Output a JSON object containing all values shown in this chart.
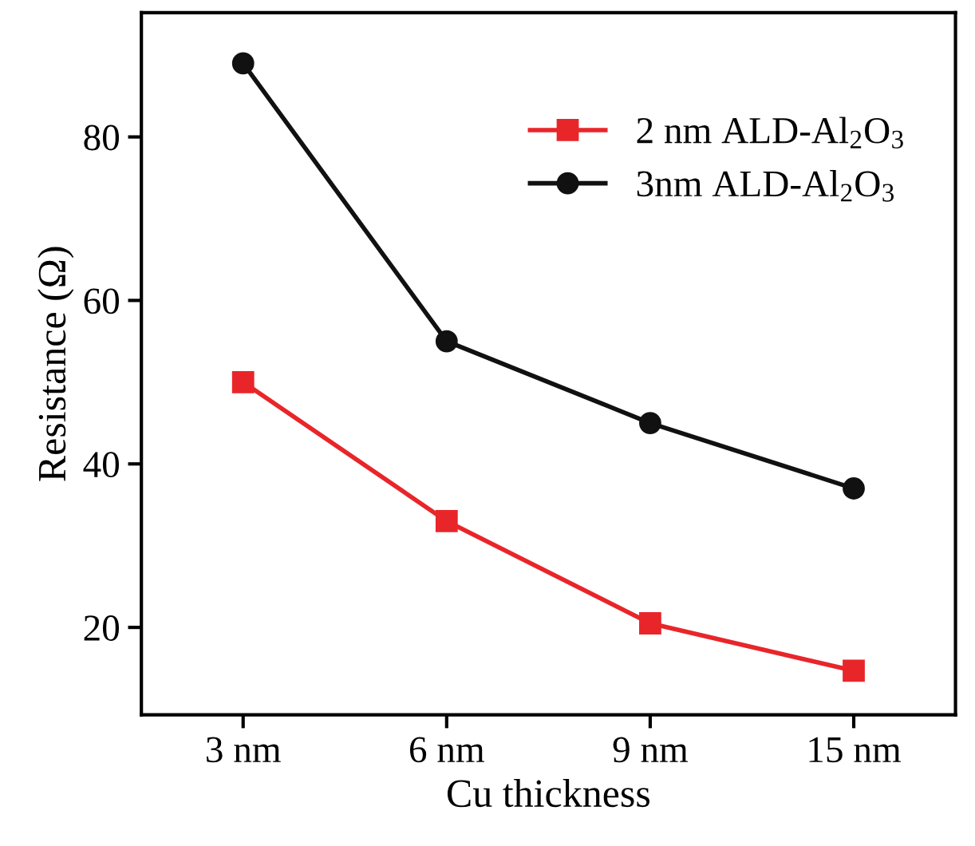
{
  "chart_data": {
    "type": "line",
    "xlabel": "Cu thickness",
    "ylabel": "Resistance (Ω)",
    "categories": [
      "3 nm",
      "6 nm",
      "9 nm",
      "15 nm"
    ],
    "series": [
      {
        "name": "2 nm ALD-Al$_{2}$O$_{3}$",
        "color": "#e8262a",
        "marker": "square",
        "values": [
          50,
          33,
          20.5,
          14.7
        ]
      },
      {
        "name": "3nm ALD-Al$_{2}$O$_{3}$",
        "color": "#111111",
        "marker": "circle",
        "values": [
          89,
          55,
          45,
          37
        ]
      }
    ],
    "ylim": [
      9.3,
      95.2
    ],
    "yticks": [
      20,
      40,
      60,
      80
    ],
    "legend": "top right",
    "grid": false,
    "line_style": "solid"
  }
}
